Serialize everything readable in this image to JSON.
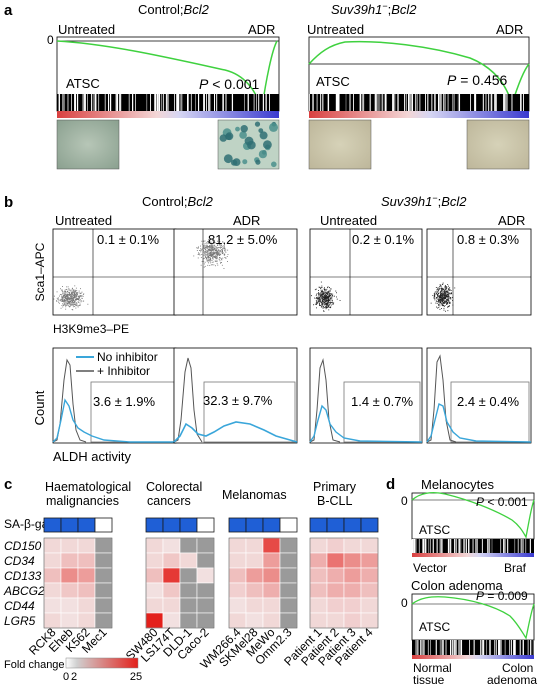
{
  "panel_labels": {
    "a": "a",
    "b": "b",
    "c": "c",
    "d": "d"
  },
  "panel_a": {
    "left": {
      "title_prefix": "Control;",
      "title_gene": "Bcl2",
      "untreated": "Untreated",
      "adr": "ADR",
      "zero": "0",
      "p_label": "P",
      "p_value": " < 0.001",
      "gene_set": "ATSC"
    },
    "right": {
      "title_gene1": "Suv39h1",
      "title_sup": "−",
      "title_sep": ";",
      "title_gene2": "Bcl2",
      "untreated": "Untreated",
      "adr": "ADR",
      "zero": "0",
      "p_label": "P",
      "p_value": " = 0.456",
      "gene_set": "ATSC"
    }
  },
  "panel_b": {
    "left_title_prefix": "Control;",
    "left_title_gene": "Bcl2",
    "right_title_gene1": "Suv39h1",
    "right_title_sup": "−",
    "right_title_sep": ";",
    "right_title_gene2": "Bcl2",
    "untreated": "Untreated",
    "adr": "ADR",
    "y_label": "Sca1–APC",
    "x_label": "H3K9me3–PE",
    "flow_values": [
      "0.1 ± 0.1%",
      "81.2 ± 5.0%",
      "0.2 ± 0.1%",
      "0.8 ± 0.3%"
    ],
    "aldh_values": [
      "3.6 ± 1.9%",
      "32.3 ± 9.7%",
      "1.4 ± 0.7%",
      "2.4 ± 0.4%"
    ],
    "legend_no_inhibitor": "No inhibitor",
    "legend_inhibitor": "+ Inhibitor",
    "count_label": "Count",
    "aldh_label": "ALDH activity",
    "color_no_inhibitor": "#3aa6da",
    "color_inhibitor": "#555555"
  },
  "panel_c": {
    "groups": [
      {
        "title1": "Haematological",
        "title2": "malignancies",
        "samples": [
          "RCK8",
          "Eheb",
          "K562",
          "Mec1"
        ],
        "sa_gal": [
          1,
          1,
          1,
          0
        ],
        "fold": [
          [
            3,
            3,
            3,
            0
          ],
          [
            3,
            6,
            6,
            0
          ],
          [
            6,
            12,
            10,
            0
          ],
          [
            3,
            5,
            6,
            0
          ],
          [
            2,
            2,
            3,
            0
          ],
          [
            3,
            2,
            3,
            0
          ]
        ]
      },
      {
        "title1": "Colorectal",
        "title2": "cancers",
        "samples": [
          "SW480",
          "LS174T",
          "DLD-1",
          "Caco-2"
        ],
        "sa_gal": [
          1,
          1,
          1,
          0
        ],
        "fold": [
          [
            3,
            2,
            0,
            0
          ],
          [
            3,
            5,
            3,
            0
          ],
          [
            6,
            22,
            0,
            2
          ],
          [
            2,
            5,
            0,
            0
          ],
          [
            3,
            3,
            0,
            0
          ],
          [
            25,
            2,
            0,
            0
          ]
        ]
      },
      {
        "title1": "Melanomas",
        "title2": "",
        "samples": [
          "WM266.4",
          "SKMel28",
          "MeWo",
          "Omm2.3"
        ],
        "sa_gal": [
          1,
          1,
          1,
          0
        ],
        "fold": [
          [
            3,
            3,
            20,
            0
          ],
          [
            3,
            3,
            10,
            0
          ],
          [
            6,
            10,
            12,
            0
          ],
          [
            4,
            6,
            8,
            0
          ],
          [
            2,
            3,
            3,
            0
          ],
          [
            3,
            2,
            3,
            0
          ]
        ]
      },
      {
        "title1": "Primary",
        "title2": "B-CLL",
        "samples": [
          "Patient 1",
          "Patient 2",
          "Patient 3",
          "Patient 4"
        ],
        "sa_gal": [
          1,
          1,
          1,
          1
        ],
        "fold": [
          [
            3,
            4,
            3,
            3
          ],
          [
            8,
            15,
            12,
            10
          ],
          [
            6,
            8,
            10,
            8
          ],
          [
            6,
            8,
            8,
            6
          ],
          [
            3,
            4,
            4,
            3
          ],
          [
            3,
            3,
            4,
            3
          ]
        ]
      }
    ],
    "sa_gal_label": "SA-β-gal",
    "genes": [
      "CD150",
      "CD34",
      "CD133",
      "ABCG2",
      "CD44",
      "LGR5"
    ],
    "fold_change_label": "Fold change",
    "scale_min": "0",
    "scale_mid": "2",
    "scale_max": "25",
    "color_sa_gal": "#1f5fd6",
    "color_missing": "#9a9a9a",
    "color_high": "#e3201b"
  },
  "panel_d": {
    "top": {
      "title": "Melanocytes",
      "zero": "0",
      "p_label": "P",
      "p_value": " < 0.001",
      "gene_set": "ATSC",
      "left_label": "Vector",
      "right_label": "Braf"
    },
    "bottom": {
      "title": "Colon adenoma",
      "zero": "0",
      "p_label": "P",
      "p_value": " = 0.009",
      "gene_set": "ATSC",
      "left_label1": "Normal",
      "left_label2": "tissue",
      "right_label1": "Colon",
      "right_label2": "adenoma"
    }
  },
  "colors": {
    "enrichment_curve": "#3fd13f",
    "rank_red": "#d94040",
    "rank_blue": "#3a3ad0"
  }
}
